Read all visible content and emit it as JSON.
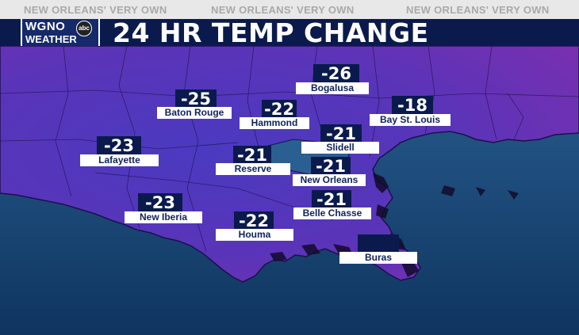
{
  "banner": {
    "text": "NEW ORLEANS' VERY OWN"
  },
  "logo": {
    "line1": "WGNO",
    "line2": "WEATHER",
    "badge": "abc"
  },
  "title": "24 HR TEMP CHANGE",
  "colors": {
    "banner_bg": "#e8e8e8",
    "banner_text": "#a9a9a9",
    "title_bg": "#0b1a4d",
    "value_box": "#0b1a4d",
    "label_box": "#ffffff",
    "label_text": "#10215c",
    "land_purple": "#5a34b8",
    "water": "#1a4a78"
  },
  "locations": [
    {
      "name": "Bogalusa",
      "value": "-26"
    },
    {
      "name": "Baton Rouge",
      "value": "-25"
    },
    {
      "name": "Hammond",
      "value": "-22"
    },
    {
      "name": "Bay St. Louis",
      "value": "-18"
    },
    {
      "name": "Lafayette",
      "value": "-23"
    },
    {
      "name": "Slidell",
      "value": "-21"
    },
    {
      "name": "Reserve",
      "value": "-21"
    },
    {
      "name": "New Orleans",
      "value": "-21"
    },
    {
      "name": "New Iberia",
      "value": "-23"
    },
    {
      "name": "Belle Chasse",
      "value": "-21"
    },
    {
      "name": "Houma",
      "value": "-22"
    },
    {
      "name": "Buras",
      "value": ""
    }
  ]
}
